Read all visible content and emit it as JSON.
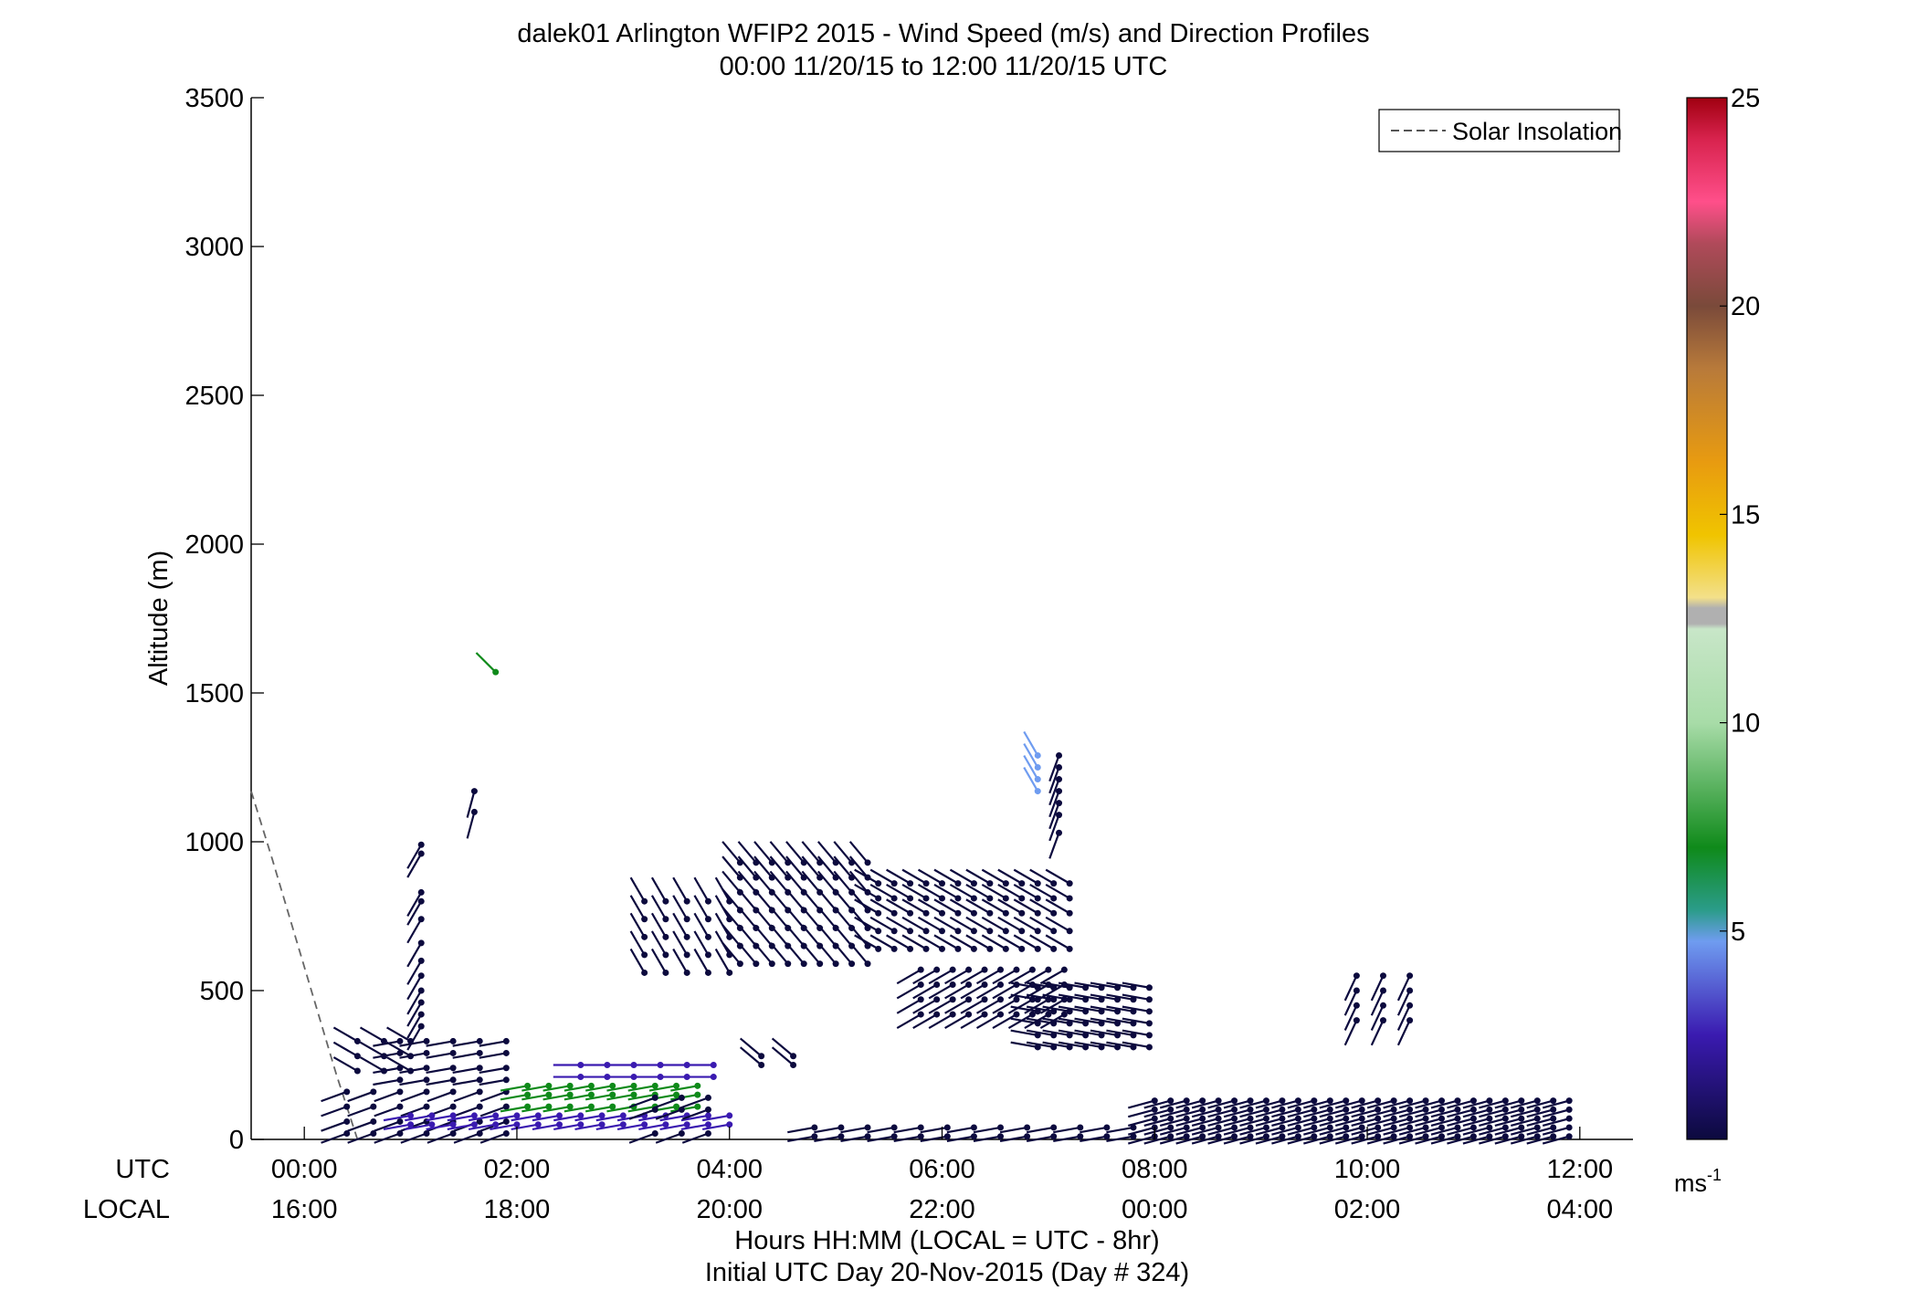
{
  "chart_data": {
    "type": "wind_barb_profile",
    "title": "dalek01 Arlington WFIP2 2015 - Wind Speed (m/s) and Direction Profiles",
    "subtitle": "00:00 11/20/15 to 12:00 11/20/15  UTC",
    "ylabel": "Altitude (m)",
    "xlabel": "Hours HH:MM  (LOCAL = UTC - 8hr)",
    "xlabel2": "Initial UTC Day 20-Nov-2015 (Day # 324)",
    "utc_row_label": "UTC",
    "local_row_label": "LOCAL",
    "xlim_hours": [
      -0.5,
      12.5
    ],
    "ylim": [
      0,
      3500
    ],
    "y_ticks": [
      0,
      500,
      1000,
      1500,
      2000,
      2500,
      3000,
      3500
    ],
    "x_ticks_utc": [
      {
        "hour": 0,
        "utc": "00:00",
        "local": "16:00"
      },
      {
        "hour": 2,
        "utc": "02:00",
        "local": "18:00"
      },
      {
        "hour": 4,
        "utc": "04:00",
        "local": "20:00"
      },
      {
        "hour": 6,
        "utc": "06:00",
        "local": "22:00"
      },
      {
        "hour": 8,
        "utc": "08:00",
        "local": "00:00"
      },
      {
        "hour": 10,
        "utc": "10:00",
        "local": "02:00"
      },
      {
        "hour": 12,
        "utc": "12:00",
        "local": "04:00"
      }
    ],
    "legend": {
      "entries": [
        "Solar Insolation"
      ],
      "placement": "top-right"
    },
    "solar_insolation": {
      "x": [
        -0.5,
        -0.3,
        -0.1,
        0.1,
        0.3,
        0.5
      ],
      "y": [
        1170,
        940,
        700,
        460,
        220,
        0
      ]
    },
    "colorbar": {
      "min": 0,
      "max": 25,
      "ticks": [
        5,
        10,
        15,
        20,
        25
      ],
      "unit_label": "ms",
      "unit_exponent": "-1",
      "colormap": [
        "#0c0a3e",
        "#3a1ab0",
        "#6f9cf0",
        "#2b9c8a",
        "#0f8a1a",
        "#a8dca8",
        "#b0b0b0",
        "#f3e08a",
        "#f0c400",
        "#e89b10",
        "#b87a3a",
        "#7a4a3a",
        "#e04b88",
        "#d8234e",
        "#a00010"
      ]
    },
    "wind_groups": [
      {
        "x0": 0.4,
        "x1": 2.0,
        "dx": 0.25,
        "alts": [
          20,
          60,
          110,
          160
        ],
        "speed": 2.0,
        "dir": 250
      },
      {
        "x0": 0.5,
        "x1": 1.0,
        "dx": 0.25,
        "alts": [
          230,
          280,
          330
        ],
        "speed": 0.7,
        "dir": 300
      },
      {
        "x0": 0.9,
        "x1": 1.9,
        "dx": 0.25,
        "alts": [
          200,
          240,
          290,
          330
        ],
        "speed": 1.5,
        "dir": 260
      },
      {
        "x0": 1.1,
        "x1": 1.1,
        "dx": 0.25,
        "alts": [
          380,
          420,
          460,
          500,
          550,
          600,
          660,
          740,
          800,
          830,
          960,
          990
        ],
        "speed": 2.3,
        "dir": 210
      },
      {
        "x0": 1.6,
        "x1": 1.6,
        "dx": 0.25,
        "alts": [
          1100,
          1170
        ],
        "speed": 2.3,
        "dir": 195
      },
      {
        "x0": 1.8,
        "x1": 1.8,
        "dx": 0.25,
        "alts": [
          1570
        ],
        "speed": 8.5,
        "dir": 315
      },
      {
        "x0": 1.0,
        "x1": 4.0,
        "dx": 0.2,
        "alts": [
          50,
          80
        ],
        "speed": 4.6,
        "dir": 260
      },
      {
        "x0": 2.1,
        "x1": 3.7,
        "dx": 0.2,
        "alts": [
          110,
          150,
          180
        ],
        "speed": 8.0,
        "dir": 260
      },
      {
        "x0": 2.6,
        "x1": 4.0,
        "dx": 0.25,
        "alts": [
          210,
          250
        ],
        "speed": 4.2,
        "dir": 270
      },
      {
        "x0": 3.3,
        "x1": 4.0,
        "dx": 0.25,
        "alts": [
          20,
          100,
          140
        ],
        "speed": 1.8,
        "dir": 250
      },
      {
        "x0": 3.2,
        "x1": 4.1,
        "dx": 0.2,
        "alts": [
          560,
          620,
          680,
          740,
          800
        ],
        "speed": 0.8,
        "dir": 330
      },
      {
        "x0": 4.1,
        "x1": 5.4,
        "dx": 0.15,
        "alts": [
          590,
          650,
          710,
          770,
          830,
          880,
          930
        ],
        "speed": 1.6,
        "dir": 320
      },
      {
        "x0": 4.3,
        "x1": 4.6,
        "dx": 0.3,
        "alts": [
          250,
          280
        ],
        "speed": 1.2,
        "dir": 310
      },
      {
        "x0": 5.4,
        "x1": 7.2,
        "dx": 0.15,
        "alts": [
          640,
          700,
          760,
          810,
          860
        ],
        "speed": 1.6,
        "dir": 300
      },
      {
        "x0": 5.8,
        "x1": 7.2,
        "dx": 0.15,
        "alts": [
          420,
          470,
          520,
          570
        ],
        "speed": 2.4,
        "dir": 240
      },
      {
        "x0": 6.9,
        "x1": 8.0,
        "dx": 0.15,
        "alts": [
          310,
          350,
          390,
          430,
          470,
          510
        ],
        "speed": 2.3,
        "dir": 280
      },
      {
        "x0": 6.9,
        "x1": 6.9,
        "dx": 0.2,
        "alts": [
          1170,
          1210,
          1250,
          1290
        ],
        "speed": 5.0,
        "dir": 330
      },
      {
        "x0": 7.1,
        "x1": 7.1,
        "dx": 0.2,
        "alts": [
          1030,
          1090,
          1130,
          1170,
          1210,
          1250,
          1290
        ],
        "speed": 2.3,
        "dir": 200
      },
      {
        "x0": 4.8,
        "x1": 8.0,
        "dx": 0.25,
        "alts": [
          10,
          40
        ],
        "speed": 0.7,
        "dir": 260
      },
      {
        "x0": 8.0,
        "x1": 12.0,
        "dx": 0.15,
        "alts": [
          10,
          40,
          70,
          100,
          130
        ],
        "speed": 2.5,
        "dir": 255
      },
      {
        "x0": 9.9,
        "x1": 10.6,
        "dx": 0.25,
        "alts": [
          400,
          450,
          500,
          550
        ],
        "speed": 2.5,
        "dir": 205
      }
    ]
  }
}
